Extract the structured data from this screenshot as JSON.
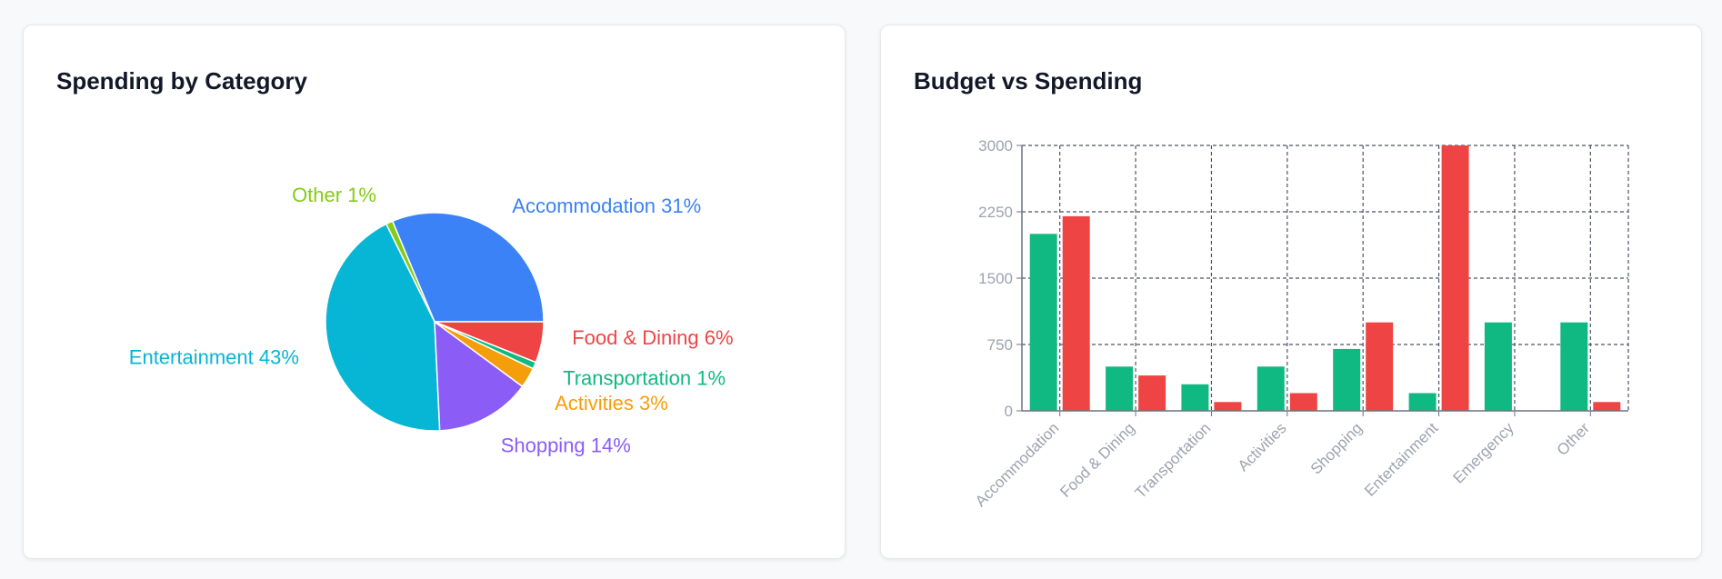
{
  "pie_card": {
    "title": "Spending by Category"
  },
  "bar_card": {
    "title": "Budget vs Spending"
  },
  "chart_data": [
    {
      "type": "pie",
      "title": "Spending by Category",
      "slices": [
        {
          "label": "Accommodation",
          "value": 31,
          "label_text": "Accommodation 31%",
          "color": "#3b82f6"
        },
        {
          "label": "Other",
          "value": 1,
          "label_text": "Other 1%",
          "color": "#84cc16"
        },
        {
          "label": "Entertainment",
          "value": 43,
          "label_text": "Entertainment 43%",
          "color": "#06b6d4"
        },
        {
          "label": "Shopping",
          "value": 14,
          "label_text": "Shopping 14%",
          "color": "#8b5cf6"
        },
        {
          "label": "Activities",
          "value": 3,
          "label_text": "Activities 3%",
          "color": "#f59e0b"
        },
        {
          "label": "Transportation",
          "value": 1,
          "label_text": "Transportation 1%",
          "color": "#10b981"
        },
        {
          "label": "Food & Dining",
          "value": 6,
          "label_text": "Food & Dining 6%",
          "color": "#ef4444"
        }
      ]
    },
    {
      "type": "bar",
      "title": "Budget vs Spending",
      "categories": [
        "Accommodation",
        "Food & Dining",
        "Transportation",
        "Activities",
        "Shopping",
        "Entertainment",
        "Emergency",
        "Other"
      ],
      "series": [
        {
          "values": [
            2000,
            500,
            300,
            500,
            700,
            200,
            1000,
            1000
          ],
          "color": "#10b981"
        },
        {
          "values": [
            2200,
            400,
            100,
            200,
            1000,
            3000,
            0,
            100
          ],
          "color": "#ef4444"
        }
      ],
      "yticks": [
        0,
        750,
        1500,
        2250,
        3000
      ],
      "ylim": [
        0,
        3000
      ],
      "grid": true
    }
  ]
}
